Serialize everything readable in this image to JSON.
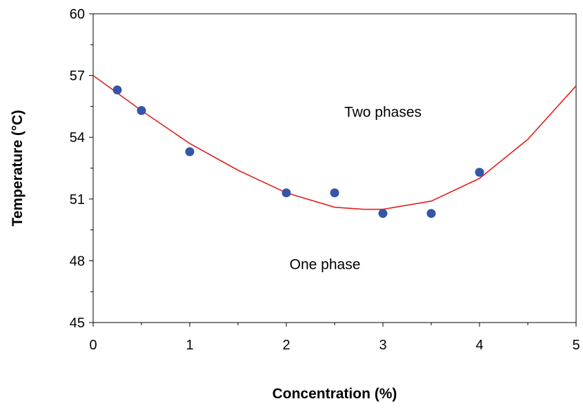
{
  "chart_data": {
    "type": "scatter",
    "title": "",
    "xlabel": "Concentration (%)",
    "ylabel": "Temperature (°C)",
    "xlim": [
      0,
      5
    ],
    "ylim": [
      45,
      60
    ],
    "x_ticks": [
      "0",
      "1",
      "2",
      "3",
      "4",
      "5"
    ],
    "y_ticks": [
      "45",
      "48",
      "51",
      "54",
      "57",
      "60"
    ],
    "grid": false,
    "legend": "none",
    "series": [
      {
        "type": "scatter",
        "color": "#3555a8",
        "points": [
          {
            "x": 0.25,
            "y": 56.3
          },
          {
            "x": 0.5,
            "y": 55.3
          },
          {
            "x": 1.0,
            "y": 53.3
          },
          {
            "x": 2.0,
            "y": 51.3
          },
          {
            "x": 2.5,
            "y": 51.3
          },
          {
            "x": 3.0,
            "y": 50.3
          },
          {
            "x": 3.5,
            "y": 50.3
          },
          {
            "x": 4.0,
            "y": 52.3
          }
        ]
      },
      {
        "type": "line",
        "color": "#e0201b",
        "fit": "quadratic",
        "points": [
          {
            "x": 0.0,
            "y": 57.0
          },
          {
            "x": 0.5,
            "y": 55.3
          },
          {
            "x": 1.0,
            "y": 53.7
          },
          {
            "x": 1.5,
            "y": 52.4
          },
          {
            "x": 2.0,
            "y": 51.3
          },
          {
            "x": 2.5,
            "y": 50.6
          },
          {
            "x": 2.8,
            "y": 50.5
          },
          {
            "x": 3.0,
            "y": 50.5
          },
          {
            "x": 3.5,
            "y": 50.9
          },
          {
            "x": 4.0,
            "y": 52.0
          },
          {
            "x": 4.5,
            "y": 53.9
          },
          {
            "x": 5.0,
            "y": 56.5
          }
        ]
      }
    ],
    "annotations": [
      {
        "text": "Two phases",
        "x": 3.0,
        "y": 55.0
      },
      {
        "text": "One phase",
        "x": 2.4,
        "y": 47.6
      }
    ]
  }
}
